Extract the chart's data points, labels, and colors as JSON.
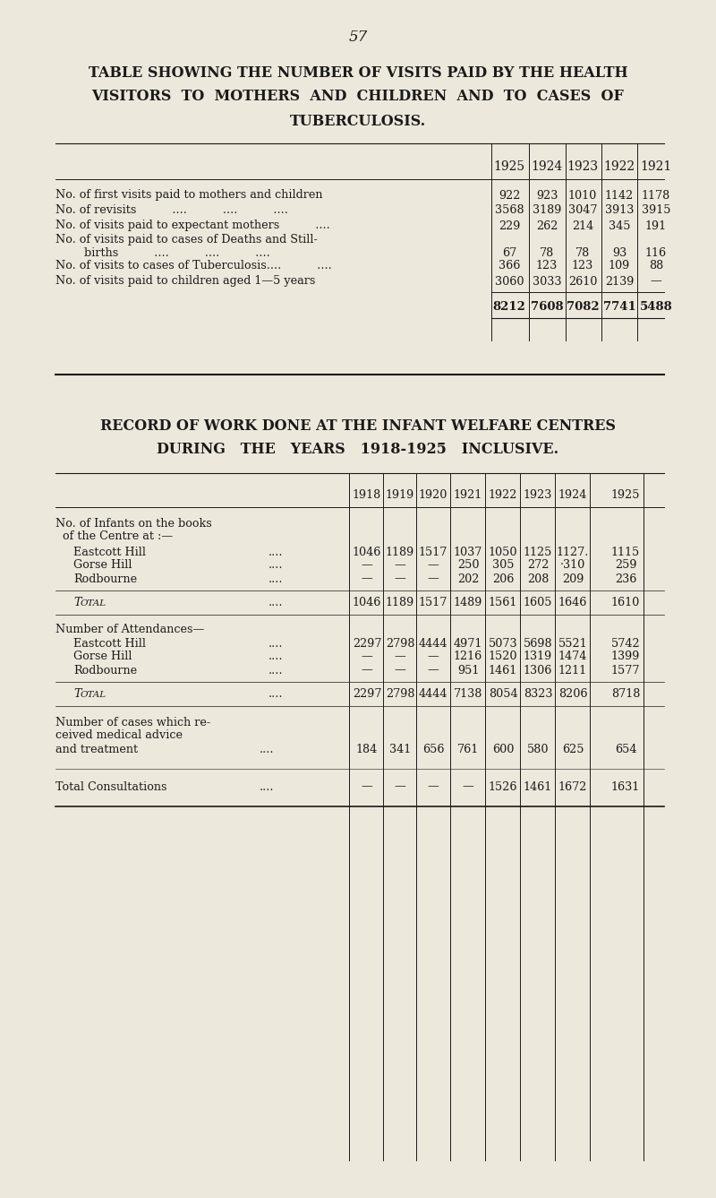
{
  "bg_color": "#ede8dc",
  "text_color": "#1a1a1a",
  "page_number": "57",
  "title1_line1": "TABLE SHOWING THE NUMBER OF VISITS PAID BY THE HEALTH",
  "title1_line2": "VISITORS  TO  MOTHERS  AND  CHILDREN  AND  TO  CASES  OF",
  "title1_line3": "TUBERCULOSIS.",
  "table1_years": [
    "1925",
    "1924",
    "1923",
    "1922",
    "1921"
  ],
  "table1_rows": [
    {
      "label1": "No. of first visits paid to mothers and children",
      "label2": null,
      "values": [
        "922",
        "923",
        "1010",
        "1142",
        "1178"
      ]
    },
    {
      "label1": "No. of revisits          ....          ....          ....",
      "label2": null,
      "values": [
        "3568",
        "3189",
        "3047",
        "3913",
        "3915"
      ]
    },
    {
      "label1": "No. of visits paid to expectant mothers          ....",
      "label2": null,
      "values": [
        "229",
        "262",
        "214",
        "345",
        "191"
      ]
    },
    {
      "label1": "No. of visits paid to cases of Deaths and Still-",
      "label2": "        births          ....          ....          ....",
      "values": [
        "67",
        "78",
        "78",
        "93",
        "116"
      ]
    },
    {
      "label1": "No. of visits to cases of Tuberculosis....          ....",
      "label2": null,
      "values": [
        "366",
        "123",
        "123",
        "109",
        "88"
      ]
    },
    {
      "label1": "No. of visits paid to children aged 1—5 years",
      "label2": null,
      "values": [
        "3060",
        "3033",
        "2610",
        "2139",
        "—"
      ]
    }
  ],
  "table1_total": [
    "8212",
    "7608",
    "7082",
    "7741",
    "5488"
  ],
  "title2_line1": "RECORD OF WORK DONE AT THE INFANT WELFARE CENTRES",
  "title2_line2": "DURING   THE   YEARS   1918-1925   INCLUSIVE.",
  "table2_years": [
    "1918",
    "1919",
    "1920",
    "1921",
    "1922",
    "1923",
    "1924",
    "1925"
  ],
  "table2_section1_header1": "No. of Infants on the books",
  "table2_section1_header2": "  of the Centre at :—",
  "table2_section1_rows": [
    {
      "label": "Eastcott Hill",
      "dots": "....",
      "values": [
        "1046",
        "1189",
        "1517",
        "1037",
        "1050",
        "1125",
        "1127.",
        "1115"
      ]
    },
    {
      "label": "Gorse Hill",
      "dots": "....",
      "values": [
        "—",
        "—",
        "—",
        "250",
        "305",
        "272",
        "·310",
        "259"
      ]
    },
    {
      "label": "Rodbourne",
      "dots": "....",
      "values": [
        "—",
        "—",
        "—",
        "202",
        "206",
        "208",
        "209",
        "236"
      ]
    }
  ],
  "table2_section1_total": [
    "1046",
    "1189",
    "1517",
    "1489",
    "1561",
    "1605",
    "1646",
    "1610"
  ],
  "table2_section2_header": "Number of Attendances—",
  "table2_section2_rows": [
    {
      "label": "Eastcott Hill",
      "dots": "....",
      "values": [
        "2297",
        "2798",
        "4444",
        "4971",
        "5073",
        "5698",
        "5521",
        "5742"
      ]
    },
    {
      "label": "Gorse Hill",
      "dots": "....",
      "values": [
        "—",
        "—",
        "—",
        "1216",
        "1520",
        "1319",
        "1474",
        "1399"
      ]
    },
    {
      "label": "Rodbourne",
      "dots": "....",
      "values": [
        "—",
        "—",
        "—",
        "951",
        "1461",
        "1306",
        "1211",
        "1577"
      ]
    }
  ],
  "table2_section2_total": [
    "2297",
    "2798",
    "4444",
    "7138",
    "8054",
    "8323",
    "8206",
    "8718"
  ],
  "table2_medical_label1": "Number of cases which re-",
  "table2_medical_label2": "ceived medical advice",
  "table2_medical_label3": "and treatment",
  "table2_medical_dots": "....",
  "table2_medical_values": [
    "184",
    "341",
    "656",
    "761",
    "600",
    "580",
    "625",
    "654"
  ],
  "table2_consult_label": "Total Consultations",
  "table2_consult_dots": "....",
  "table2_consult_values": [
    "—",
    "—",
    "—",
    "—",
    "1526",
    "1461",
    "1672",
    "1631"
  ]
}
